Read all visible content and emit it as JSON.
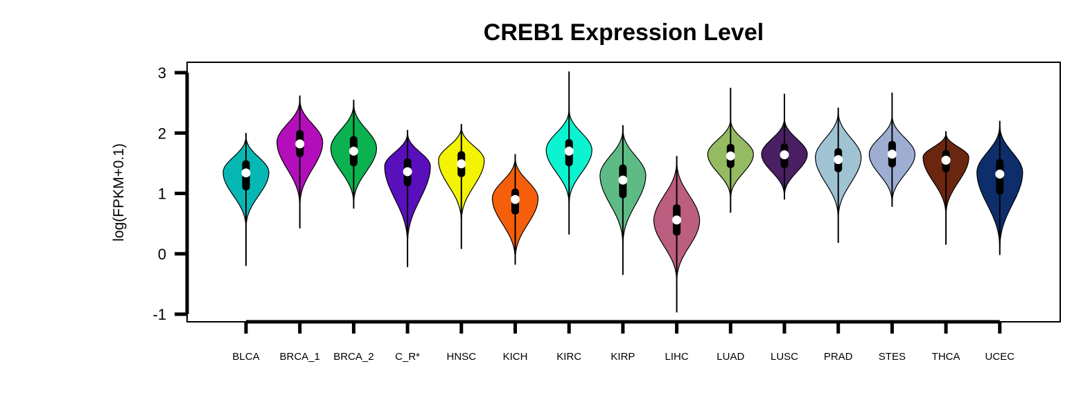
{
  "chart_data": {
    "type": "violin",
    "title": "CREB1 Expression Level",
    "ylabel": "log(FPKM+0.1)",
    "xlabel": "",
    "ylim": [
      -1,
      3
    ],
    "yticks": [
      -1,
      0,
      1,
      2,
      3
    ],
    "grid": false,
    "legend": "none",
    "categories": [
      "BLCA",
      "BRCA_1",
      "BRCA_2",
      "C_R*",
      "HNSC",
      "KICH",
      "KIRC",
      "KIRP",
      "LIHC",
      "LUAD",
      "LUSC",
      "PRAD",
      "STES",
      "THCA",
      "UCEC"
    ],
    "series": [
      {
        "category": "BLCA",
        "color": "#06B7B3",
        "min": -0.2,
        "max": 2.0,
        "q1": 1.05,
        "median": 1.34,
        "q3": 1.55,
        "violin_lo": 0.35,
        "violin_hi": 2.0,
        "peak": 1.35
      },
      {
        "category": "BRCA_1",
        "color": "#B30DBC",
        "min": 0.42,
        "max": 2.62,
        "q1": 1.6,
        "median": 1.82,
        "q3": 2.05,
        "violin_lo": 0.7,
        "violin_hi": 2.62,
        "peak": 1.85
      },
      {
        "category": "BRCA_2",
        "color": "#0BB24F",
        "min": 0.75,
        "max": 2.55,
        "q1": 1.45,
        "median": 1.7,
        "q3": 1.95,
        "violin_lo": 0.75,
        "violin_hi": 2.55,
        "peak": 1.75
      },
      {
        "category": "C_R*",
        "color": "#5A0FBD",
        "min": -0.22,
        "max": 2.05,
        "q1": 1.12,
        "median": 1.36,
        "q3": 1.58,
        "violin_lo": 0.05,
        "violin_hi": 2.05,
        "peak": 1.45
      },
      {
        "category": "HNSC",
        "color": "#F3F304",
        "min": 0.08,
        "max": 2.15,
        "q1": 1.27,
        "median": 1.49,
        "q3": 1.7,
        "violin_lo": 0.45,
        "violin_hi": 2.15,
        "peak": 1.55
      },
      {
        "category": "KICH",
        "color": "#F55F0C",
        "min": -0.18,
        "max": 1.65,
        "q1": 0.65,
        "median": 0.9,
        "q3": 1.08,
        "violin_lo": -0.18,
        "violin_hi": 1.65,
        "peak": 0.92
      },
      {
        "category": "KIRC",
        "color": "#0CF3D1",
        "min": 0.32,
        "max": 3.02,
        "q1": 1.45,
        "median": 1.7,
        "q3": 1.9,
        "violin_lo": 0.75,
        "violin_hi": 2.45,
        "peak": 1.72
      },
      {
        "category": "KIRP",
        "color": "#5FBB85",
        "min": -0.35,
        "max": 2.13,
        "q1": 0.92,
        "median": 1.22,
        "q3": 1.48,
        "violin_lo": 0.05,
        "violin_hi": 2.13,
        "peak": 1.3
      },
      {
        "category": "LIHC",
        "color": "#BC5E80",
        "min": -0.97,
        "max": 1.62,
        "q1": 0.3,
        "median": 0.56,
        "q3": 0.82,
        "violin_lo": -0.55,
        "violin_hi": 1.62,
        "peak": 0.55
      },
      {
        "category": "LUAD",
        "color": "#94BA62",
        "min": 0.68,
        "max": 2.75,
        "q1": 1.42,
        "median": 1.62,
        "q3": 1.82,
        "violin_lo": 0.85,
        "violin_hi": 2.28,
        "peak": 1.65
      },
      {
        "category": "LUSC",
        "color": "#4A1F63",
        "min": 0.9,
        "max": 2.65,
        "q1": 1.42,
        "median": 1.64,
        "q3": 1.83,
        "violin_lo": 0.9,
        "violin_hi": 2.3,
        "peak": 1.65
      },
      {
        "category": "PRAD",
        "color": "#A0C3D4",
        "min": 0.18,
        "max": 2.42,
        "q1": 1.35,
        "median": 1.56,
        "q3": 1.75,
        "violin_lo": 0.5,
        "violin_hi": 2.42,
        "peak": 1.6
      },
      {
        "category": "STES",
        "color": "#9EAED3",
        "min": 0.78,
        "max": 2.67,
        "q1": 1.43,
        "median": 1.65,
        "q3": 1.87,
        "violin_lo": 0.78,
        "violin_hi": 2.35,
        "peak": 1.65
      },
      {
        "category": "THCA",
        "color": "#6B2610",
        "min": 0.15,
        "max": 2.03,
        "q1": 1.35,
        "median": 1.55,
        "q3": 1.72,
        "violin_lo": 0.55,
        "violin_hi": 2.03,
        "peak": 1.6
      },
      {
        "category": "UCEC",
        "color": "#0D2E6B",
        "min": -0.02,
        "max": 2.2,
        "q1": 0.98,
        "median": 1.32,
        "q3": 1.57,
        "violin_lo": -0.02,
        "violin_hi": 2.2,
        "peak": 1.35
      }
    ]
  }
}
